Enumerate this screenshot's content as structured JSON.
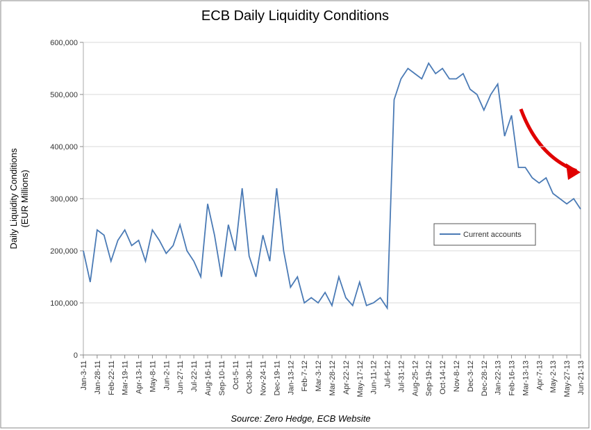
{
  "chart_data": {
    "type": "line",
    "title": "ECB Daily Liquidity Conditions",
    "y_label": [
      "Daily Liquidity Conditions",
      "(EUR Millions)"
    ],
    "source": "Source:  Zero Hedge, ECB Website",
    "categories": [
      "Jan-3-11",
      null,
      "Jan-28-11",
      null,
      "Feb-22-11",
      null,
      "Mar-19-11",
      null,
      "Apr-13-11",
      null,
      "May-8-11",
      null,
      "Jun-2-11",
      null,
      "Jun-27-11",
      null,
      "Jul-22-11",
      null,
      "Aug-16-11",
      null,
      "Sep-10-11",
      null,
      "Oct-5-11",
      null,
      "Oct-30-11",
      null,
      "Nov-24-11",
      null,
      "Dec-19-11",
      null,
      "Jan-13-12",
      null,
      "Feb-7-12",
      null,
      "Mar-3-12",
      null,
      "Mar-28-12",
      null,
      "Apr-22-12",
      null,
      "May-17-12",
      null,
      "Jun-11-12",
      null,
      "Jul-6-12",
      null,
      "Jul-31-12",
      null,
      "Aug-25-12",
      null,
      "Sep-19-12",
      null,
      "Oct-14-12",
      null,
      "Nov-8-12",
      null,
      "Dec-3-12",
      null,
      "Dec-28-12",
      null,
      "Jan-22-13",
      null,
      "Feb-16-13",
      null,
      "Mar-13-13",
      null,
      "Apr-7-13",
      null,
      "May-2-13",
      null,
      "May-27-13",
      null,
      "Jun-21-13"
    ],
    "series": [
      {
        "name": "Current accounts",
        "color": "#4a7ab5",
        "values": [
          200000,
          140000,
          240000,
          230000,
          180000,
          220000,
          240000,
          210000,
          220000,
          180000,
          240000,
          220000,
          195000,
          210000,
          250000,
          200000,
          180000,
          150000,
          290000,
          230000,
          150000,
          250000,
          200000,
          320000,
          190000,
          150000,
          230000,
          180000,
          320000,
          200000,
          130000,
          150000,
          100000,
          110000,
          100000,
          120000,
          95000,
          150000,
          110000,
          95000,
          140000,
          95000,
          100000,
          110000,
          90000,
          490000,
          530000,
          550000,
          540000,
          530000,
          560000,
          540000,
          550000,
          530000,
          530000,
          540000,
          510000,
          500000,
          470000,
          500000,
          520000,
          420000,
          460000,
          360000,
          360000,
          340000,
          330000,
          340000,
          310000,
          300000,
          290000,
          300000,
          280000
        ]
      }
    ],
    "ylim": [
      0,
      600000
    ],
    "yticks": [
      0,
      {
        "value": 100000,
        "label": "100,000"
      },
      {
        "value": 200000,
        "label": "200,000"
      },
      {
        "value": 300000,
        "label": "300,000"
      },
      {
        "value": 400000,
        "label": "400,000"
      },
      {
        "value": 500000,
        "label": "500,000"
      },
      {
        "value": 600000,
        "label": "600,000"
      }
    ],
    "grid": true
  }
}
